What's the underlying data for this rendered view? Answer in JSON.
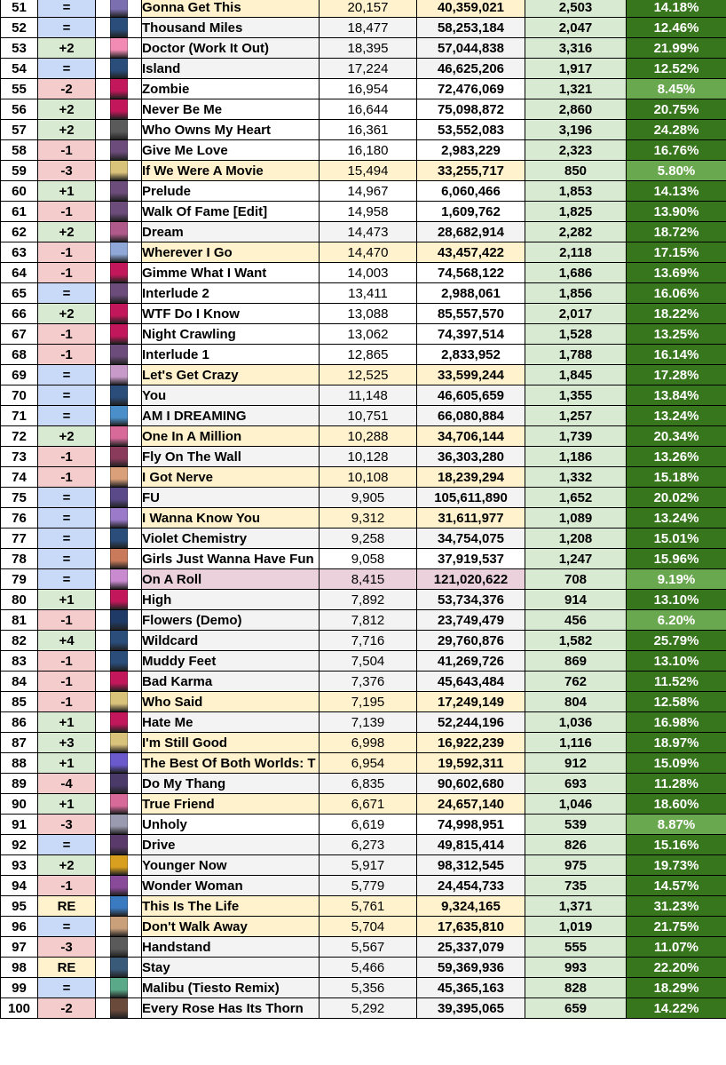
{
  "colors": {
    "move_up": "#d9ead3",
    "move_down": "#f4cccc",
    "move_same": "#c9daf8",
    "move_re": "#fff2cc",
    "row_highlight": "#fff2cc",
    "row_pink": "#ead1dc",
    "row_plain": "#f3f3f3",
    "row_white": "#ffffff",
    "change_bg": "#d9ead3",
    "pct_dark": "#38761d",
    "pct_light": "#6aa84f"
  },
  "rows": [
    {
      "rank": "51",
      "move": "=",
      "title": "Gonna Get This",
      "daily": "20,157",
      "total": "40,359,021",
      "change": "2,503",
      "pct": "14.18%",
      "row": "highlight",
      "art": "#7b6fb0"
    },
    {
      "rank": "52",
      "move": "=",
      "title": "Thousand Miles",
      "daily": "18,477",
      "total": "58,253,184",
      "change": "2,047",
      "pct": "12.46%",
      "row": "plain",
      "art": "#2a4d7a"
    },
    {
      "rank": "53",
      "move": "+2",
      "title": "Doctor (Work It Out)",
      "daily": "18,395",
      "total": "57,044,838",
      "change": "3,316",
      "pct": "21.99%",
      "row": "plain",
      "art": "#f28cb5"
    },
    {
      "rank": "54",
      "move": "=",
      "title": "Island",
      "daily": "17,224",
      "total": "46,625,206",
      "change": "1,917",
      "pct": "12.52%",
      "row": "plain",
      "art": "#2a4d7a"
    },
    {
      "rank": "55",
      "move": "-2",
      "title": "Zombie",
      "daily": "16,954",
      "total": "72,476,069",
      "change": "1,321",
      "pct": "8.45%",
      "row": "white",
      "art": "#c2185b"
    },
    {
      "rank": "56",
      "move": "+2",
      "title": "Never Be Me",
      "daily": "16,644",
      "total": "75,098,872",
      "change": "2,860",
      "pct": "20.75%",
      "row": "white",
      "art": "#c2185b"
    },
    {
      "rank": "57",
      "move": "+2",
      "title": "Who Owns My Heart",
      "daily": "16,361",
      "total": "53,552,083",
      "change": "3,196",
      "pct": "24.28%",
      "row": "white",
      "art": "#5a5a5a"
    },
    {
      "rank": "58",
      "move": "-1",
      "title": "Give Me Love",
      "daily": "16,180",
      "total": "2,983,229",
      "change": "2,323",
      "pct": "16.76%",
      "row": "white",
      "art": "#6b4c7a"
    },
    {
      "rank": "59",
      "move": "-3",
      "title": "If We Were A Movie",
      "daily": "15,494",
      "total": "33,255,717",
      "change": "850",
      "pct": "5.80%",
      "row": "highlight",
      "art": "#d9c27a"
    },
    {
      "rank": "60",
      "move": "+1",
      "title": "Prelude",
      "daily": "14,967",
      "total": "6,060,466",
      "change": "1,853",
      "pct": "14.13%",
      "row": "white",
      "art": "#6b4c7a"
    },
    {
      "rank": "61",
      "move": "-1",
      "title": "Walk Of Fame [Edit]",
      "daily": "14,958",
      "total": "1,609,762",
      "change": "1,825",
      "pct": "13.90%",
      "row": "white",
      "art": "#6b4c7a"
    },
    {
      "rank": "62",
      "move": "+2",
      "title": "Dream",
      "daily": "14,473",
      "total": "28,682,914",
      "change": "2,282",
      "pct": "18.72%",
      "row": "plain",
      "art": "#b05a8c"
    },
    {
      "rank": "63",
      "move": "-1",
      "title": "Wherever I Go",
      "daily": "14,470",
      "total": "43,457,422",
      "change": "2,118",
      "pct": "17.15%",
      "row": "highlight",
      "art": "#8fa8d8"
    },
    {
      "rank": "64",
      "move": "-1",
      "title": "Gimme What I Want",
      "daily": "14,003",
      "total": "74,568,122",
      "change": "1,686",
      "pct": "13.69%",
      "row": "white",
      "art": "#c2185b"
    },
    {
      "rank": "65",
      "move": "=",
      "title": "Interlude 2",
      "daily": "13,411",
      "total": "2,988,061",
      "change": "1,856",
      "pct": "16.06%",
      "row": "white",
      "art": "#6b4c7a"
    },
    {
      "rank": "66",
      "move": "+2",
      "title": "WTF Do I Know",
      "daily": "13,088",
      "total": "85,557,570",
      "change": "2,017",
      "pct": "18.22%",
      "row": "white",
      "art": "#c2185b"
    },
    {
      "rank": "67",
      "move": "-1",
      "title": "Night Crawling",
      "daily": "13,062",
      "total": "74,397,514",
      "change": "1,528",
      "pct": "13.25%",
      "row": "white",
      "art": "#c2185b"
    },
    {
      "rank": "68",
      "move": "-1",
      "title": "Interlude 1",
      "daily": "12,865",
      "total": "2,833,952",
      "change": "1,788",
      "pct": "16.14%",
      "row": "white",
      "art": "#6b4c7a"
    },
    {
      "rank": "69",
      "move": "=",
      "title": "Let's Get Crazy",
      "daily": "12,525",
      "total": "33,599,244",
      "change": "1,845",
      "pct": "17.28%",
      "row": "highlight",
      "art": "#c79ac9"
    },
    {
      "rank": "70",
      "move": "=",
      "title": "You",
      "daily": "11,148",
      "total": "46,605,659",
      "change": "1,355",
      "pct": "13.84%",
      "row": "plain",
      "art": "#2a4d7a"
    },
    {
      "rank": "71",
      "move": "=",
      "title": "AM I DREAMING",
      "daily": "10,751",
      "total": "66,080,884",
      "change": "1,257",
      "pct": "13.24%",
      "row": "plain",
      "art": "#4a8fc9"
    },
    {
      "rank": "72",
      "move": "+2",
      "title": "One In A Million",
      "daily": "10,288",
      "total": "34,706,144",
      "change": "1,739",
      "pct": "20.34%",
      "row": "highlight",
      "art": "#d86a9a"
    },
    {
      "rank": "73",
      "move": "-1",
      "title": "Fly On The Wall",
      "daily": "10,128",
      "total": "36,303,280",
      "change": "1,186",
      "pct": "13.26%",
      "row": "plain",
      "art": "#8a3a5a"
    },
    {
      "rank": "74",
      "move": "-1",
      "title": "I Got Nerve",
      "daily": "10,108",
      "total": "18,239,294",
      "change": "1,332",
      "pct": "15.18%",
      "row": "highlight",
      "art": "#d9a07a"
    },
    {
      "rank": "75",
      "move": "=",
      "title": "FU",
      "daily": "9,905",
      "total": "105,611,890",
      "change": "1,652",
      "pct": "20.02%",
      "row": "plain",
      "art": "#5a4a8a"
    },
    {
      "rank": "76",
      "move": "=",
      "title": "I Wanna Know You",
      "daily": "9,312",
      "total": "31,611,977",
      "change": "1,089",
      "pct": "13.24%",
      "row": "highlight",
      "art": "#9a7ac9"
    },
    {
      "rank": "77",
      "move": "=",
      "title": "Violet Chemistry",
      "daily": "9,258",
      "total": "34,754,075",
      "change": "1,208",
      "pct": "15.01%",
      "row": "plain",
      "art": "#2a4d7a"
    },
    {
      "rank": "78",
      "move": "=",
      "title": "Girls Just Wanna Have Fun",
      "daily": "9,058",
      "total": "37,919,537",
      "change": "1,247",
      "pct": "15.96%",
      "row": "white",
      "art": "#c97a5a"
    },
    {
      "rank": "79",
      "move": "=",
      "title": "On A Roll",
      "daily": "8,415",
      "total": "121,020,622",
      "change": "708",
      "pct": "9.19%",
      "row": "pink",
      "art": "#c98ad0"
    },
    {
      "rank": "80",
      "move": "+1",
      "title": "High",
      "daily": "7,892",
      "total": "53,734,376",
      "change": "914",
      "pct": "13.10%",
      "row": "plain",
      "art": "#c2185b"
    },
    {
      "rank": "81",
      "move": "-1",
      "title": "Flowers (Demo)",
      "daily": "7,812",
      "total": "23,749,479",
      "change": "456",
      "pct": "6.20%",
      "row": "plain",
      "art": "#1f3a66"
    },
    {
      "rank": "82",
      "move": "+4",
      "title": "Wildcard",
      "daily": "7,716",
      "total": "29,760,876",
      "change": "1,582",
      "pct": "25.79%",
      "row": "plain",
      "art": "#2a4d7a"
    },
    {
      "rank": "83",
      "move": "-1",
      "title": "Muddy Feet",
      "daily": "7,504",
      "total": "41,269,726",
      "change": "869",
      "pct": "13.10%",
      "row": "plain",
      "art": "#2a4d7a"
    },
    {
      "rank": "84",
      "move": "-1",
      "title": "Bad Karma",
      "daily": "7,376",
      "total": "45,643,484",
      "change": "762",
      "pct": "11.52%",
      "row": "plain",
      "art": "#c2185b"
    },
    {
      "rank": "85",
      "move": "-1",
      "title": "Who Said",
      "daily": "7,195",
      "total": "17,249,149",
      "change": "804",
      "pct": "12.58%",
      "row": "highlight",
      "art": "#d9c27a"
    },
    {
      "rank": "86",
      "move": "+1",
      "title": "Hate Me",
      "daily": "7,139",
      "total": "52,244,196",
      "change": "1,036",
      "pct": "16.98%",
      "row": "plain",
      "art": "#c2185b"
    },
    {
      "rank": "87",
      "move": "+3",
      "title": "I'm Still Good",
      "daily": "6,998",
      "total": "16,922,239",
      "change": "1,116",
      "pct": "18.97%",
      "row": "highlight",
      "art": "#d9c27a"
    },
    {
      "rank": "88",
      "move": "+1",
      "title": "The Best Of Both Worlds: T",
      "daily": "6,954",
      "total": "19,592,311",
      "change": "912",
      "pct": "15.09%",
      "row": "highlight",
      "art": "#6a5acd"
    },
    {
      "rank": "89",
      "move": "-4",
      "title": "Do My Thang",
      "daily": "6,835",
      "total": "90,602,680",
      "change": "693",
      "pct": "11.28%",
      "row": "plain",
      "art": "#4a3a6a"
    },
    {
      "rank": "90",
      "move": "+1",
      "title": "True Friend",
      "daily": "6,671",
      "total": "24,657,140",
      "change": "1,046",
      "pct": "18.60%",
      "row": "highlight",
      "art": "#d86a9a"
    },
    {
      "rank": "91",
      "move": "-3",
      "title": "Unholy",
      "daily": "6,619",
      "total": "74,998,951",
      "change": "539",
      "pct": "8.87%",
      "row": "white",
      "art": "#9a9ab0"
    },
    {
      "rank": "92",
      "move": "=",
      "title": "Drive",
      "daily": "6,273",
      "total": "49,815,414",
      "change": "826",
      "pct": "15.16%",
      "row": "plain",
      "art": "#5a3a6a"
    },
    {
      "rank": "93",
      "move": "+2",
      "title": "Younger Now",
      "daily": "5,917",
      "total": "98,312,545",
      "change": "975",
      "pct": "19.73%",
      "row": "plain",
      "art": "#d9a020"
    },
    {
      "rank": "94",
      "move": "-1",
      "title": "Wonder Woman",
      "daily": "5,779",
      "total": "24,454,733",
      "change": "735",
      "pct": "14.57%",
      "row": "plain",
      "art": "#8a4a9a"
    },
    {
      "rank": "95",
      "move": "RE",
      "title": "This Is The Life",
      "daily": "5,761",
      "total": "9,324,165",
      "change": "1,371",
      "pct": "31.23%",
      "row": "highlight",
      "art": "#3a7ac0"
    },
    {
      "rank": "96",
      "move": "=",
      "title": "Don't Walk Away",
      "daily": "5,704",
      "total": "17,635,810",
      "change": "1,019",
      "pct": "21.75%",
      "row": "highlight",
      "art": "#c9a07a"
    },
    {
      "rank": "97",
      "move": "-3",
      "title": "Handstand",
      "daily": "5,567",
      "total": "25,337,079",
      "change": "555",
      "pct": "11.07%",
      "row": "plain",
      "art": "#5a5a5a"
    },
    {
      "rank": "98",
      "move": "RE",
      "title": "Stay",
      "daily": "5,466",
      "total": "59,369,936",
      "change": "993",
      "pct": "22.20%",
      "row": "plain",
      "art": "#3a5a7a"
    },
    {
      "rank": "99",
      "move": "=",
      "title": "Malibu (Tiesto Remix)",
      "daily": "5,356",
      "total": "45,365,163",
      "change": "828",
      "pct": "18.29%",
      "row": "plain",
      "art": "#5aaa8a"
    },
    {
      "rank": "100",
      "move": "-2",
      "title": "Every Rose Has Its Thorn",
      "daily": "5,292",
      "total": "39,395,065",
      "change": "659",
      "pct": "14.22%",
      "row": "plain",
      "art": "#6a4a3a"
    }
  ]
}
